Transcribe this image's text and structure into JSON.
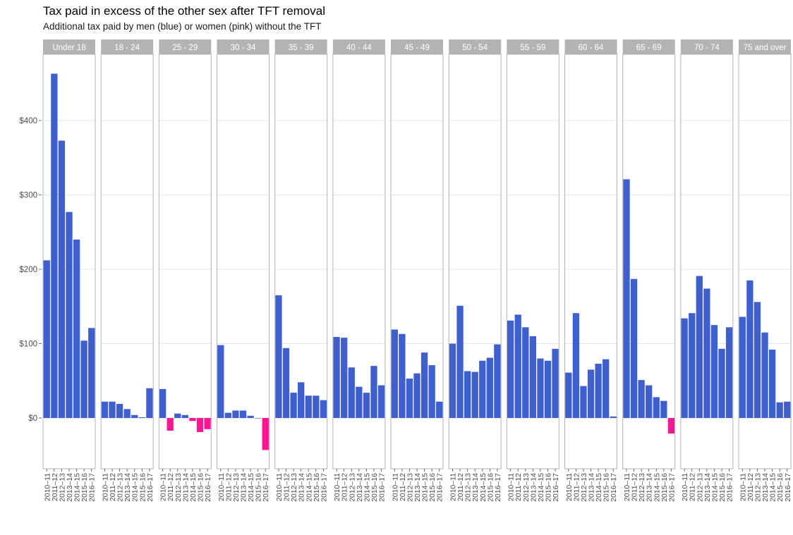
{
  "chart_data": {
    "type": "bar",
    "title": "Tax paid in excess of the other sex after TFT removal",
    "subtitle": "Additional tax paid by men (blue) or women (pink) without the TFT",
    "xlabel": "",
    "ylabel": "",
    "ylim": [
      -70,
      490
    ],
    "yticks": [
      0,
      100,
      200,
      300,
      400
    ],
    "ytick_labels": [
      "$0",
      "$100",
      "$200",
      "$300",
      "$400"
    ],
    "grid": true,
    "colors": {
      "men": "#3d5fcf",
      "women": "#ff1493",
      "strip": "#b3b3b3"
    },
    "categories": [
      "2010–11",
      "2011–12",
      "2012–13",
      "2013–14",
      "2014–15",
      "2015–16",
      "2016–17"
    ],
    "panels": [
      {
        "name": "Under 18",
        "values": [
          212,
          463,
          373,
          277,
          240,
          104,
          121
        ]
      },
      {
        "name": "18 - 24",
        "values": [
          22,
          22,
          19,
          12,
          4,
          1,
          40
        ]
      },
      {
        "name": "25 - 29",
        "values": [
          39,
          -17,
          6,
          4,
          -4,
          -19,
          -15
        ]
      },
      {
        "name": "30 - 34",
        "values": [
          98,
          7,
          10,
          10,
          3,
          0,
          -43
        ]
      },
      {
        "name": "35 - 39",
        "values": [
          165,
          94,
          34,
          48,
          30,
          30,
          24
        ]
      },
      {
        "name": "40 - 44",
        "values": [
          109,
          108,
          68,
          42,
          34,
          70,
          44
        ]
      },
      {
        "name": "45 - 49",
        "values": [
          119,
          113,
          53,
          60,
          88,
          71,
          22
        ]
      },
      {
        "name": "50 - 54",
        "values": [
          100,
          151,
          63,
          62,
          77,
          81,
          99
        ]
      },
      {
        "name": "55 - 59",
        "values": [
          131,
          139,
          122,
          110,
          80,
          77,
          93
        ]
      },
      {
        "name": "60 - 64",
        "values": [
          61,
          141,
          43,
          65,
          73,
          79,
          2
        ]
      },
      {
        "name": "65 - 69",
        "values": [
          321,
          187,
          51,
          44,
          28,
          23,
          -21
        ]
      },
      {
        "name": "70 - 74",
        "values": [
          134,
          141,
          191,
          174,
          125,
          93,
          122
        ]
      },
      {
        "name": "75 and over",
        "values": [
          136,
          185,
          156,
          115,
          92,
          21,
          22
        ]
      }
    ]
  }
}
